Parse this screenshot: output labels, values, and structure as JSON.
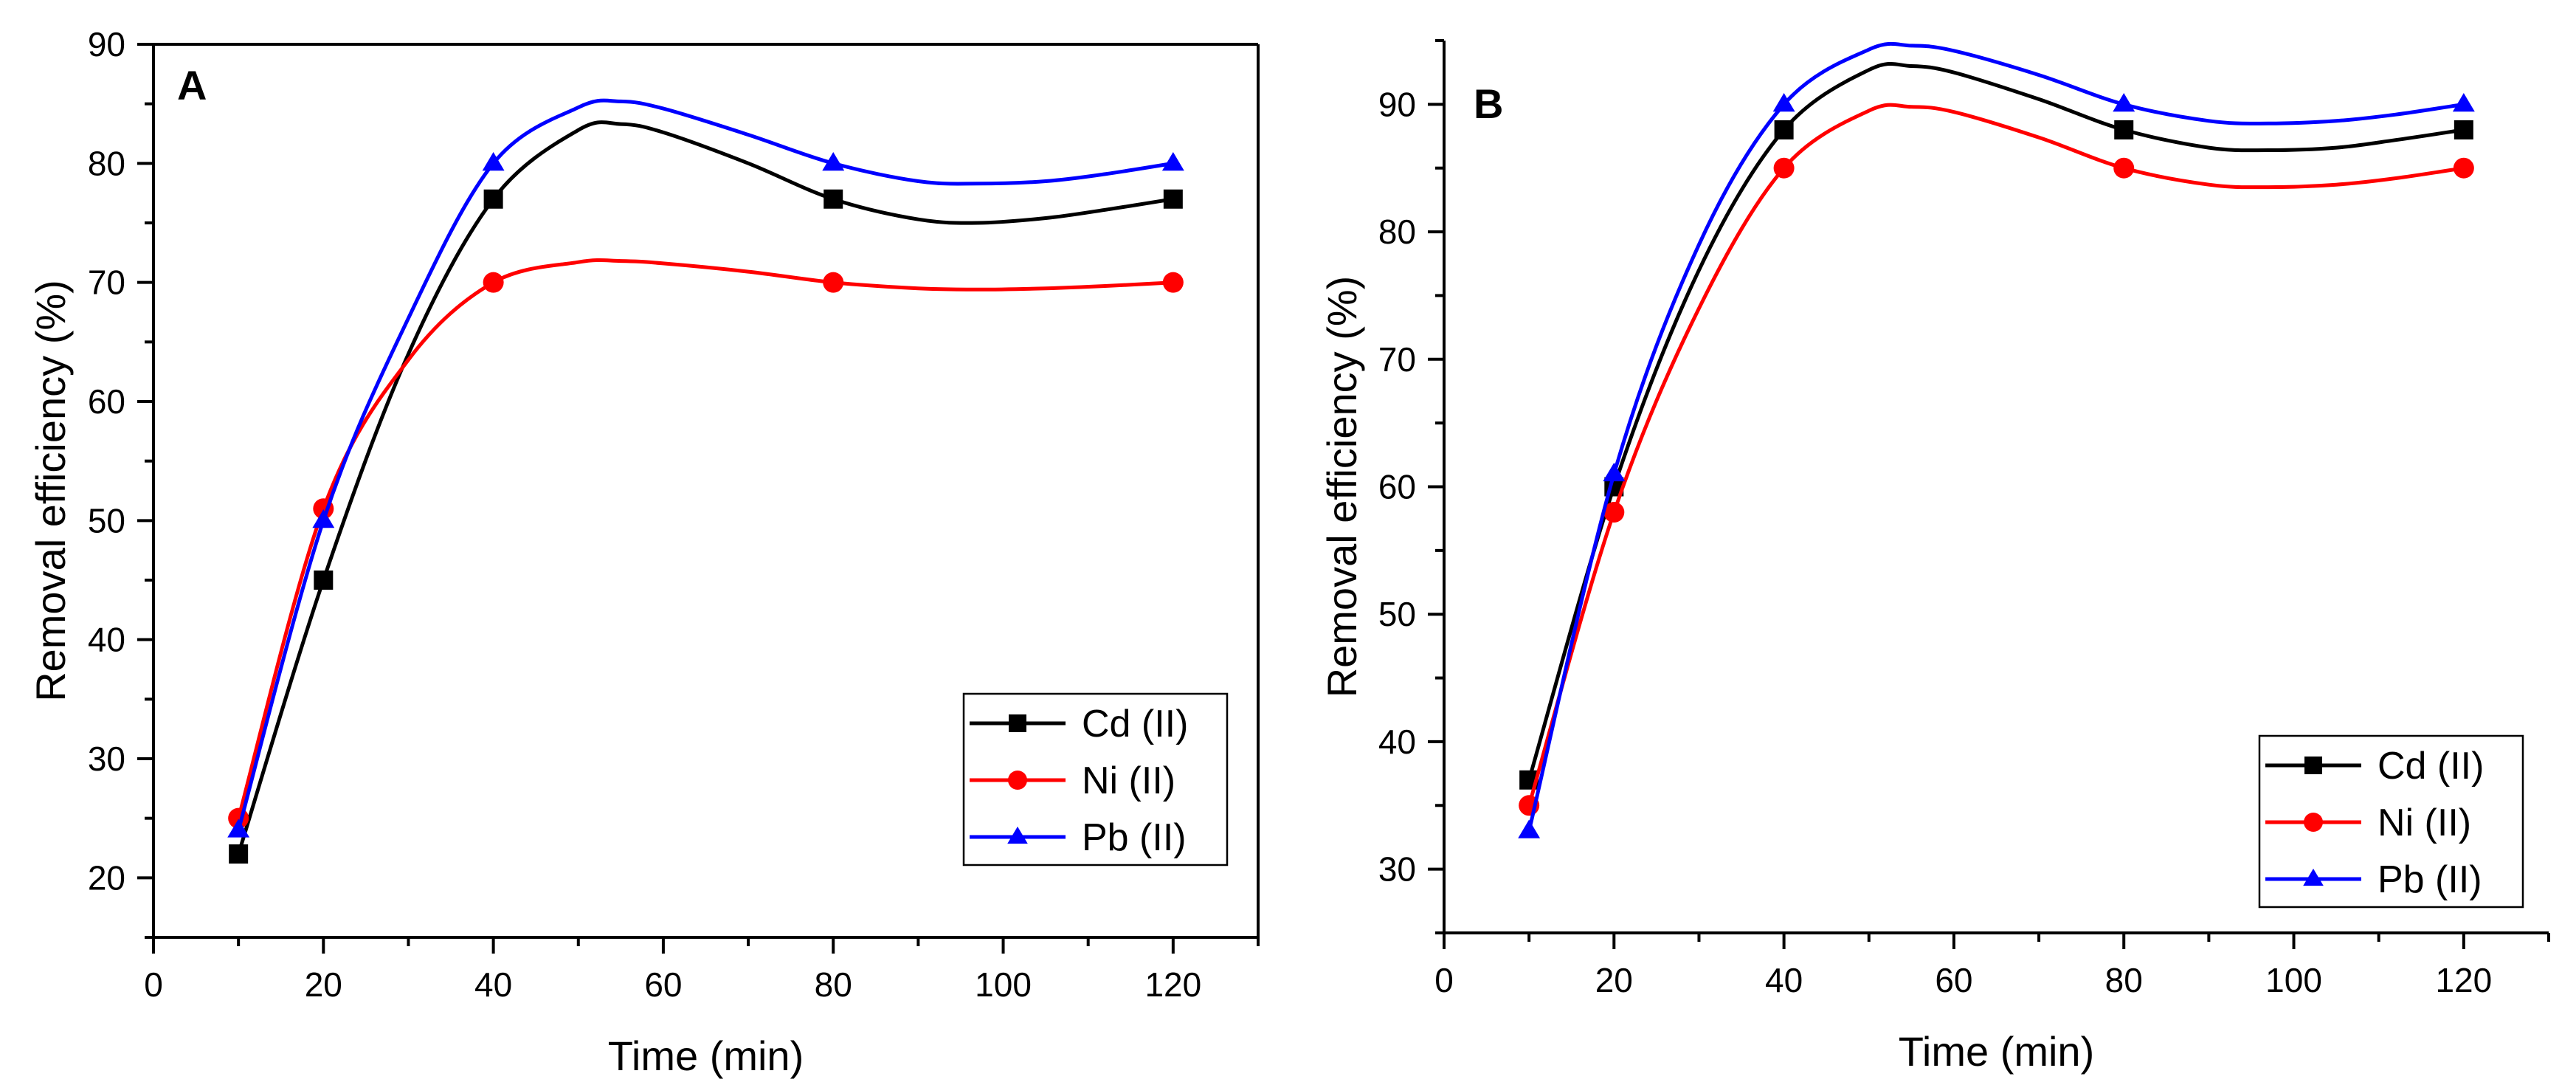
{
  "chart_data": [
    {
      "type": "line",
      "panel_label": "A",
      "xlabel": "Time (min)",
      "ylabel": "Removal efficiency (%)",
      "xlim": [
        0,
        130
      ],
      "ylim": [
        15,
        90
      ],
      "xticks": [
        0,
        20,
        40,
        60,
        80,
        100,
        120
      ],
      "yticks": [
        20,
        30,
        40,
        50,
        60,
        70,
        80,
        90
      ],
      "x": [
        10,
        20,
        40,
        80,
        120
      ],
      "series": [
        {
          "name": "Cd (II)",
          "color": "#000000",
          "marker": "square",
          "values": [
            22,
            45,
            77,
            77,
            77
          ],
          "curve_x": [
            10,
            20,
            30,
            40,
            50,
            55,
            60,
            70,
            80,
            90,
            97,
            105,
            112,
            120
          ],
          "curve_y": [
            22,
            45,
            64,
            77,
            82.8,
            83.3,
            82.6,
            80,
            77,
            75.3,
            75,
            75.4,
            76.1,
            77
          ]
        },
        {
          "name": "Ni (II)",
          "color": "#ff0000",
          "marker": "circle",
          "values": [
            25,
            51,
            70,
            70,
            70
          ],
          "curve_x": [
            10,
            20,
            30,
            40,
            50,
            55,
            60,
            70,
            80,
            90,
            97,
            105,
            112,
            120
          ],
          "curve_y": [
            25,
            51,
            63.5,
            70,
            71.7,
            71.8,
            71.6,
            70.9,
            70,
            69.5,
            69.4,
            69.5,
            69.7,
            70
          ]
        },
        {
          "name": "Pb (II)",
          "color": "#0000ff",
          "marker": "triangle",
          "values": [
            24,
            50,
            80,
            80,
            80
          ],
          "curve_x": [
            10,
            20,
            30,
            40,
            50,
            55,
            60,
            70,
            80,
            90,
            97,
            105,
            112,
            120
          ],
          "curve_y": [
            24,
            50,
            67,
            80,
            84.7,
            85.2,
            84.6,
            82.4,
            80,
            78.5,
            78.3,
            78.5,
            79.1,
            80
          ]
        }
      ],
      "legend": "bottom-right"
    },
    {
      "type": "line",
      "panel_label": "B",
      "xlabel": "Time (min)",
      "ylabel": "Removal efficiency (%)",
      "xlim": [
        0,
        130
      ],
      "ylim": [
        25,
        95
      ],
      "xticks": [
        0,
        20,
        40,
        60,
        80,
        100,
        120
      ],
      "yticks": [
        30,
        40,
        50,
        60,
        70,
        80,
        90
      ],
      "x": [
        10,
        20,
        40,
        80,
        120
      ],
      "series": [
        {
          "name": "Cd (II)",
          "color": "#000000",
          "marker": "square",
          "values": [
            37,
            60,
            88,
            88,
            88
          ],
          "curve_x": [
            10,
            20,
            30,
            40,
            50,
            55,
            60,
            70,
            80,
            90,
            97,
            105,
            112,
            120
          ],
          "curve_y": [
            37,
            60,
            77,
            88,
            92.7,
            93,
            92.5,
            90.4,
            88,
            86.6,
            86.4,
            86.6,
            87.2,
            88
          ]
        },
        {
          "name": "Ni (II)",
          "color": "#ff0000",
          "marker": "circle",
          "values": [
            35,
            58,
            85,
            85,
            85
          ],
          "curve_x": [
            10,
            20,
            30,
            40,
            50,
            55,
            60,
            70,
            80,
            90,
            97,
            105,
            112,
            120
          ],
          "curve_y": [
            35,
            58,
            74,
            85,
            89.5,
            89.8,
            89.4,
            87.4,
            85,
            83.7,
            83.5,
            83.7,
            84.2,
            85
          ]
        },
        {
          "name": "Pb (II)",
          "color": "#0000ff",
          "marker": "triangle",
          "values": [
            33,
            61,
            90,
            90,
            90
          ],
          "curve_x": [
            10,
            20,
            30,
            40,
            50,
            55,
            60,
            70,
            80,
            90,
            97,
            105,
            112,
            120
          ],
          "curve_y": [
            33,
            61,
            79,
            90,
            94.3,
            94.6,
            94.2,
            92.3,
            90,
            88.7,
            88.5,
            88.7,
            89.2,
            90
          ]
        }
      ],
      "legend": "bottom-right"
    }
  ]
}
